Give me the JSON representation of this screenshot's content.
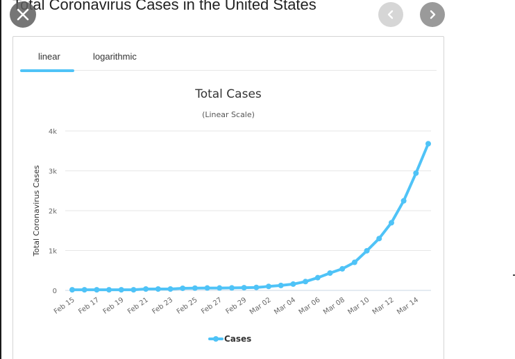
{
  "header": {
    "title": "Total Coronavirus Cases in the United States",
    "close_icon": "close-icon",
    "prev_icon": "chevron-left-icon",
    "next_icon": "chevron-right-icon"
  },
  "tabs": [
    {
      "label": "linear",
      "active": true
    },
    {
      "label": "logarithmic",
      "active": false
    }
  ],
  "colors": {
    "series": "#4fc3f7",
    "grid": "#e6e6e6",
    "tab_active": "#4fc3f7"
  },
  "chart_data": {
    "type": "line",
    "title": "Total Cases",
    "subtitle": "(Linear Scale)",
    "xlabel": "",
    "ylabel": "Total Coronavirus Cases",
    "ylim": [
      0,
      4000
    ],
    "yticks": [
      0,
      1000,
      2000,
      3000,
      4000
    ],
    "ytick_labels": [
      "0",
      "1k",
      "2k",
      "3k",
      "4k"
    ],
    "grid": true,
    "legend": "bottom-center",
    "x": [
      "Feb 15",
      "Feb 16",
      "Feb 17",
      "Feb 18",
      "Feb 19",
      "Feb 20",
      "Feb 21",
      "Feb 22",
      "Feb 23",
      "Feb 24",
      "Feb 25",
      "Feb 26",
      "Feb 27",
      "Feb 28",
      "Feb 29",
      "Mar 01",
      "Mar 02",
      "Mar 03",
      "Mar 04",
      "Mar 05",
      "Mar 06",
      "Mar 07",
      "Mar 08",
      "Mar 09",
      "Mar 10",
      "Mar 11",
      "Mar 12",
      "Mar 13",
      "Mar 14",
      "Mar 15"
    ],
    "xtick_labels": [
      "Feb 15",
      "Feb 17",
      "Feb 19",
      "Feb 21",
      "Feb 23",
      "Feb 25",
      "Feb 27",
      "Feb 29",
      "Mar 02",
      "Mar 04",
      "Mar 06",
      "Mar 08",
      "Mar 10",
      "Mar 12",
      "Mar 14"
    ],
    "series": [
      {
        "name": "Cases",
        "values": [
          15,
          15,
          15,
          15,
          15,
          15,
          35,
          35,
          35,
          53,
          57,
          60,
          60,
          62,
          68,
          75,
          100,
          124,
          158,
          221,
          319,
          435,
          541,
          704,
          994,
          1301,
          1697,
          2247,
          2943,
          3680
        ]
      }
    ]
  }
}
